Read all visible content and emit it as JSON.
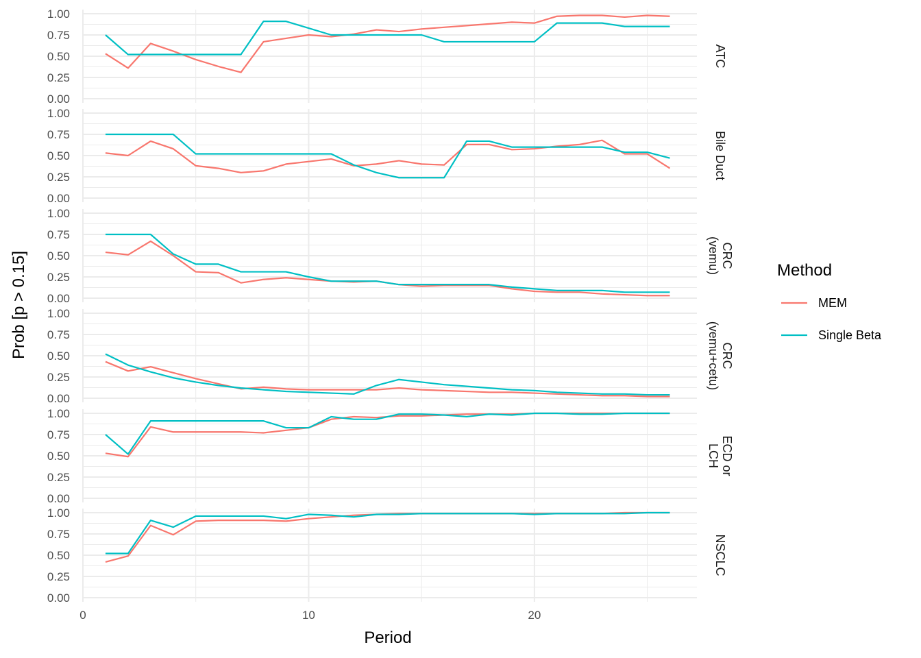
{
  "chart_data": {
    "type": "line",
    "xlabel": "Period",
    "ylabel": "Prob [p  >  0.15]",
    "xlim": [
      0,
      27.2
    ],
    "ylim": [
      0,
      1
    ],
    "x_ticks": [
      0,
      10,
      20
    ],
    "x_tick_labels": [
      "0",
      "10",
      "20"
    ],
    "y_ticks": [
      0,
      0.25,
      0.5,
      0.75,
      1
    ],
    "y_tick_labels": [
      "0.00",
      "0.25",
      "0.50",
      "0.75",
      "1.00"
    ],
    "grid": true,
    "legend": {
      "title": "Method",
      "position": "right",
      "entries": [
        "MEM",
        "Single Beta"
      ]
    },
    "colors": {
      "MEM": "#F8766D",
      "Single Beta": "#00BFC4"
    },
    "x": [
      1,
      2,
      3,
      4,
      5,
      6,
      7,
      8,
      9,
      10,
      11,
      12,
      13,
      14,
      15,
      16,
      17,
      18,
      19,
      20,
      21,
      22,
      23,
      24,
      25,
      26
    ],
    "panels": [
      {
        "label_lines": [
          "ATC"
        ],
        "series": [
          {
            "name": "MEM",
            "values": [
              0.53,
              0.36,
              0.65,
              0.56,
              0.46,
              0.38,
              0.31,
              0.67,
              0.71,
              0.75,
              0.73,
              0.76,
              0.81,
              0.79,
              0.82,
              0.84,
              0.86,
              0.88,
              0.9,
              0.89,
              0.97,
              0.98,
              0.98,
              0.96,
              0.98,
              0.97
            ]
          },
          {
            "name": "Single Beta",
            "values": [
              0.75,
              0.52,
              0.52,
              0.52,
              0.52,
              0.52,
              0.52,
              0.91,
              0.91,
              0.83,
              0.75,
              0.75,
              0.75,
              0.75,
              0.75,
              0.67,
              0.67,
              0.67,
              0.67,
              0.67,
              0.89,
              0.89,
              0.89,
              0.85,
              0.85,
              0.85
            ]
          }
        ]
      },
      {
        "label_lines": [
          "Bile Duct"
        ],
        "series": [
          {
            "name": "MEM",
            "values": [
              0.53,
              0.5,
              0.67,
              0.58,
              0.38,
              0.35,
              0.3,
              0.32,
              0.4,
              0.43,
              0.46,
              0.38,
              0.4,
              0.44,
              0.4,
              0.39,
              0.63,
              0.63,
              0.57,
              0.58,
              0.61,
              0.63,
              0.68,
              0.52,
              0.52,
              0.35
            ]
          },
          {
            "name": "Single Beta",
            "values": [
              0.75,
              0.75,
              0.75,
              0.75,
              0.52,
              0.52,
              0.52,
              0.52,
              0.52,
              0.52,
              0.52,
              0.39,
              0.3,
              0.24,
              0.24,
              0.24,
              0.67,
              0.67,
              0.6,
              0.6,
              0.6,
              0.6,
              0.6,
              0.54,
              0.54,
              0.47
            ]
          }
        ]
      },
      {
        "label_lines": [
          "CRC",
          "(vemu)"
        ],
        "series": [
          {
            "name": "MEM",
            "values": [
              0.54,
              0.51,
              0.67,
              0.5,
              0.31,
              0.3,
              0.18,
              0.22,
              0.24,
              0.22,
              0.2,
              0.19,
              0.2,
              0.16,
              0.14,
              0.15,
              0.15,
              0.15,
              0.11,
              0.08,
              0.07,
              0.07,
              0.05,
              0.04,
              0.03,
              0.03
            ]
          },
          {
            "name": "Single Beta",
            "values": [
              0.75,
              0.75,
              0.75,
              0.52,
              0.4,
              0.4,
              0.31,
              0.31,
              0.31,
              0.25,
              0.2,
              0.2,
              0.2,
              0.16,
              0.16,
              0.16,
              0.16,
              0.16,
              0.13,
              0.11,
              0.09,
              0.09,
              0.09,
              0.07,
              0.07,
              0.07
            ]
          }
        ]
      },
      {
        "label_lines": [
          "CRC",
          "(vemu+cetu)"
        ],
        "series": [
          {
            "name": "MEM",
            "values": [
              0.43,
              0.32,
              0.37,
              0.3,
              0.23,
              0.17,
              0.11,
              0.13,
              0.11,
              0.1,
              0.1,
              0.1,
              0.1,
              0.12,
              0.1,
              0.09,
              0.08,
              0.07,
              0.07,
              0.06,
              0.05,
              0.04,
              0.03,
              0.03,
              0.02,
              0.02
            ]
          },
          {
            "name": "Single Beta",
            "values": [
              0.52,
              0.39,
              0.31,
              0.24,
              0.19,
              0.15,
              0.12,
              0.1,
              0.08,
              0.07,
              0.06,
              0.05,
              0.15,
              0.22,
              0.19,
              0.16,
              0.14,
              0.12,
              0.1,
              0.09,
              0.07,
              0.06,
              0.05,
              0.05,
              0.04,
              0.04
            ]
          }
        ]
      },
      {
        "label_lines": [
          "ECD or",
          "LCH"
        ],
        "series": [
          {
            "name": "MEM",
            "values": [
              0.53,
              0.49,
              0.84,
              0.78,
              0.78,
              0.78,
              0.78,
              0.77,
              0.8,
              0.83,
              0.93,
              0.96,
              0.95,
              0.97,
              0.97,
              0.98,
              0.99,
              0.99,
              0.99,
              1.0,
              1.0,
              1.0,
              1.0,
              1.0,
              1.0,
              1.0
            ]
          },
          {
            "name": "Single Beta",
            "values": [
              0.75,
              0.52,
              0.91,
              0.91,
              0.91,
              0.91,
              0.91,
              0.91,
              0.83,
              0.83,
              0.96,
              0.93,
              0.93,
              0.99,
              0.99,
              0.98,
              0.96,
              0.99,
              0.98,
              1.0,
              1.0,
              0.99,
              0.99,
              1.0,
              1.0,
              1.0
            ]
          }
        ]
      },
      {
        "label_lines": [
          "NSCLC"
        ],
        "series": [
          {
            "name": "MEM",
            "values": [
              0.42,
              0.49,
              0.85,
              0.74,
              0.9,
              0.91,
              0.91,
              0.91,
              0.9,
              0.93,
              0.95,
              0.97,
              0.98,
              0.99,
              0.99,
              0.99,
              0.99,
              0.99,
              0.99,
              0.99,
              0.99,
              0.99,
              0.99,
              1.0,
              1.0,
              1.0
            ]
          },
          {
            "name": "Single Beta",
            "values": [
              0.52,
              0.52,
              0.91,
              0.83,
              0.96,
              0.96,
              0.96,
              0.96,
              0.93,
              0.98,
              0.97,
              0.95,
              0.98,
              0.98,
              0.99,
              0.99,
              0.99,
              0.99,
              0.99,
              0.98,
              0.99,
              0.99,
              0.99,
              0.99,
              1.0,
              1.0
            ]
          }
        ]
      }
    ]
  }
}
